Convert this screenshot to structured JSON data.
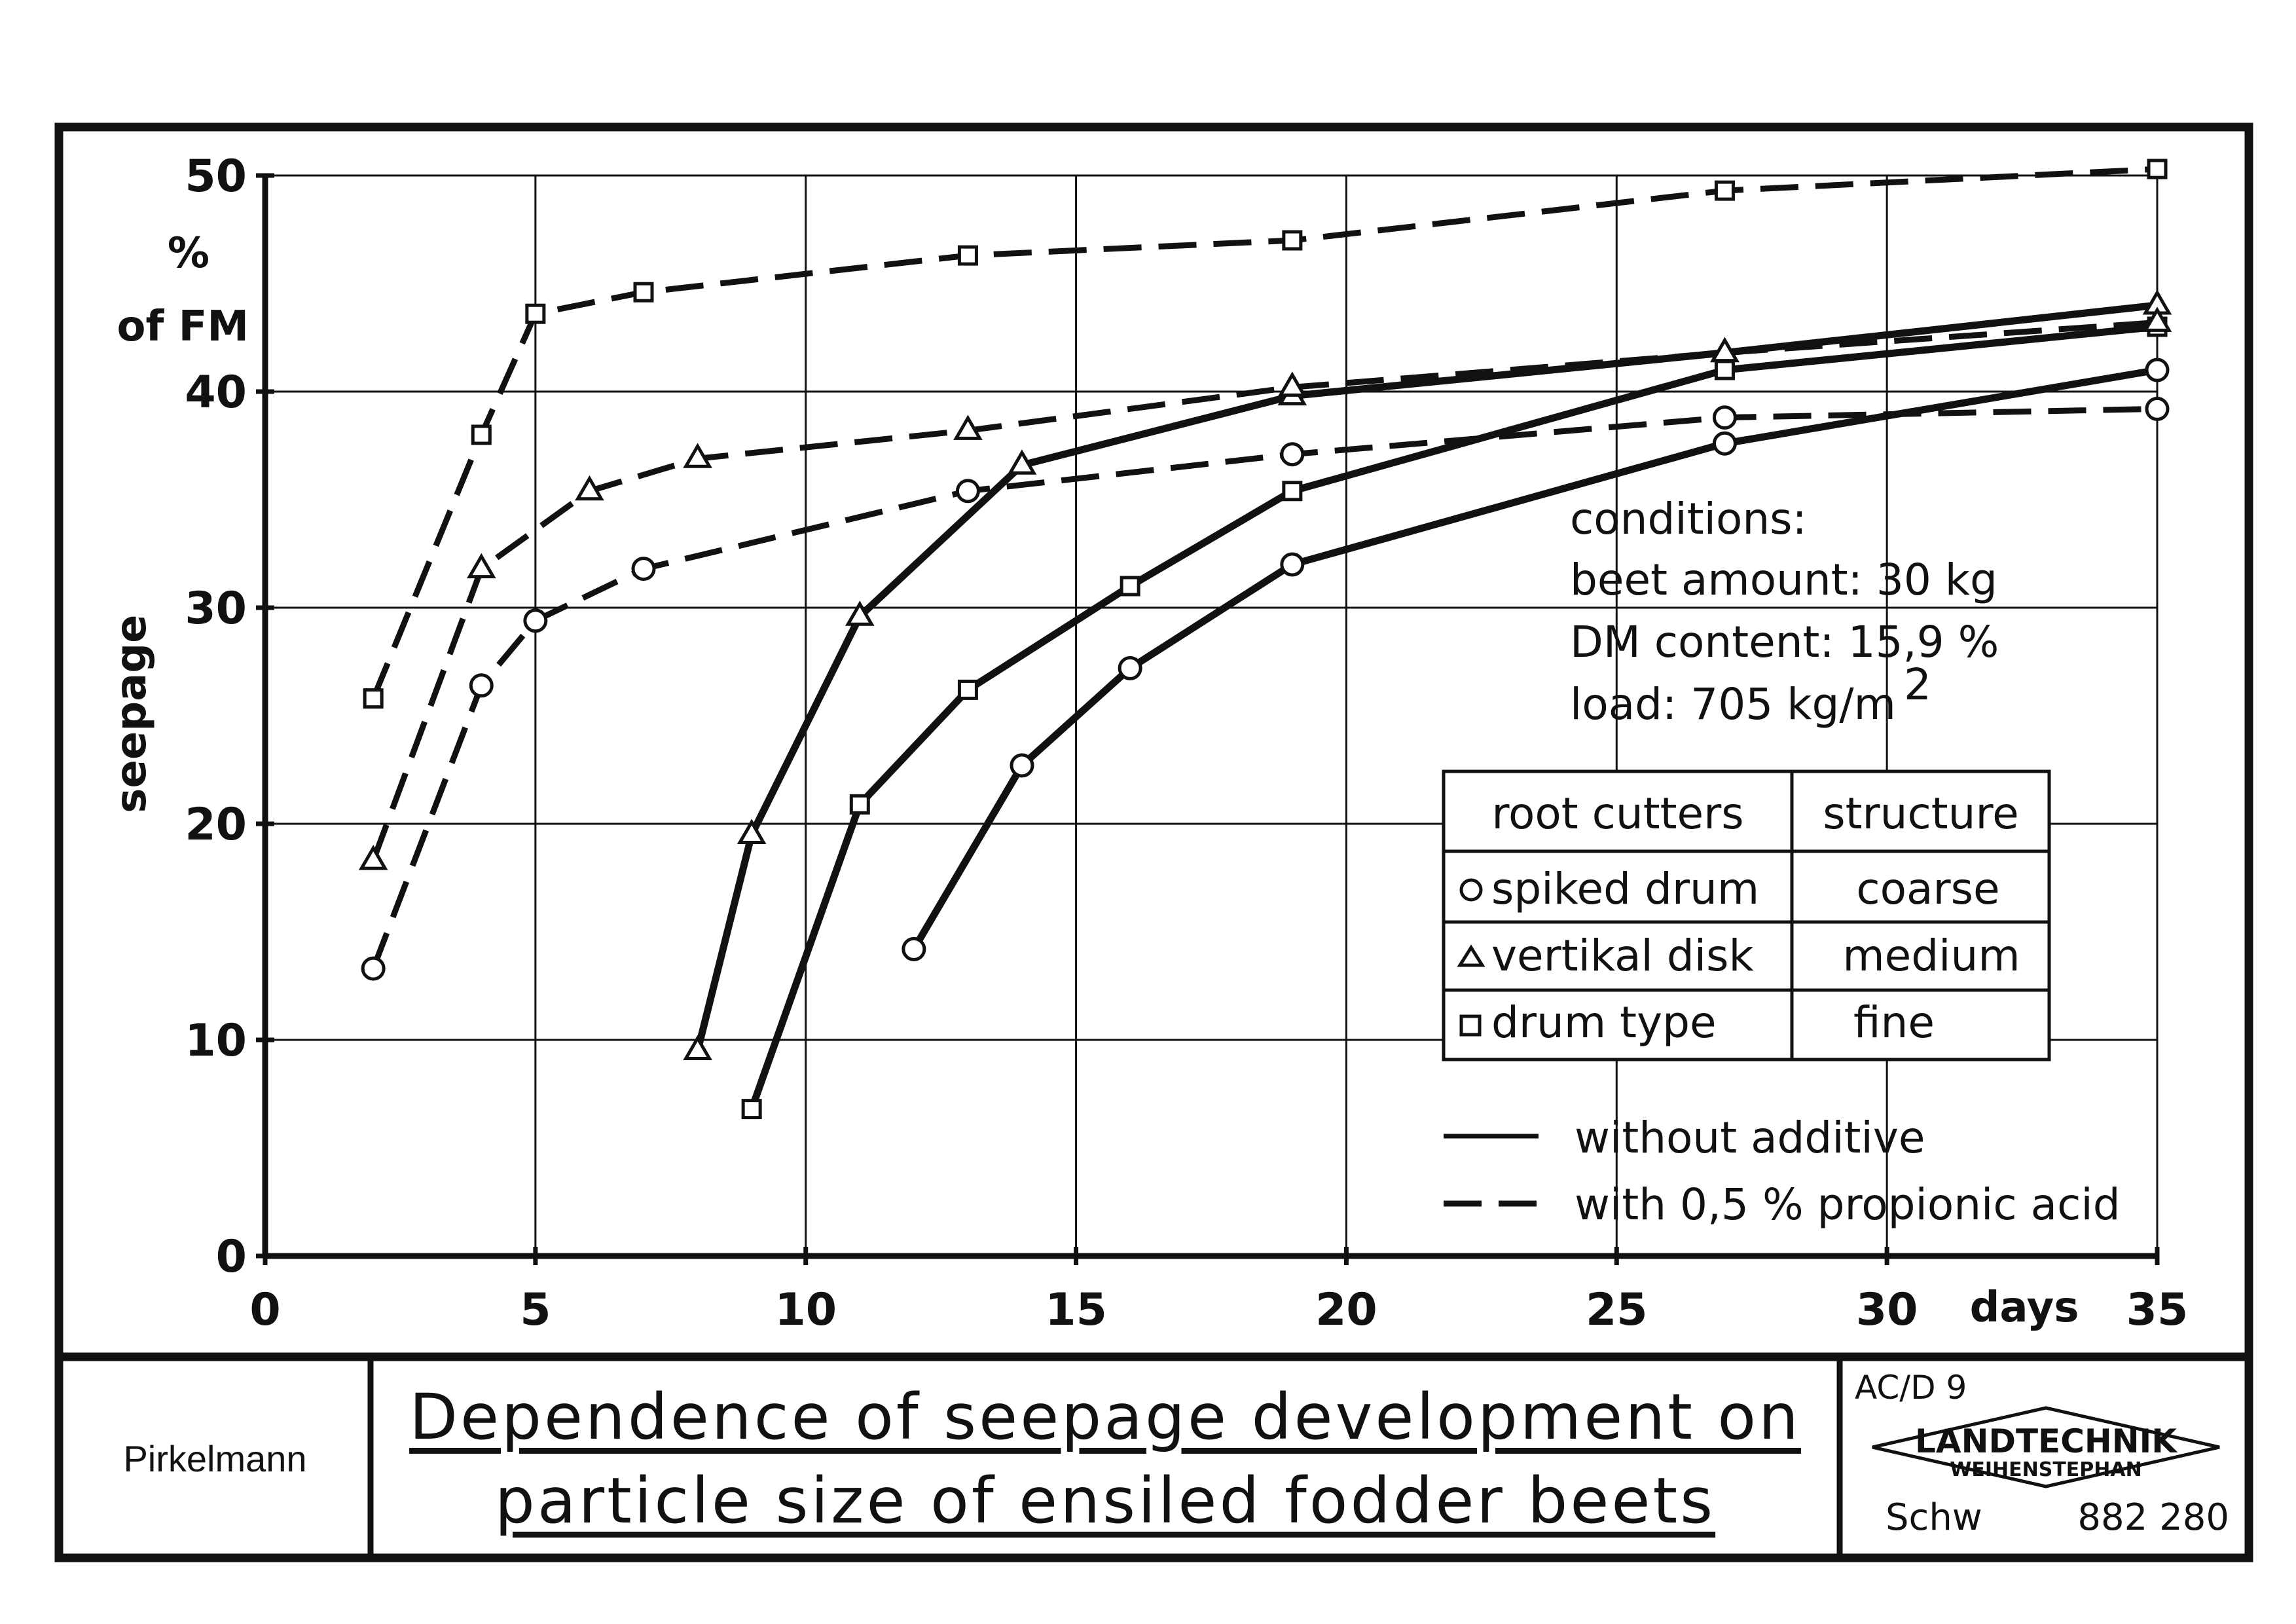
{
  "chart_data": {
    "type": "line",
    "xlabel": "days",
    "ylabel": "seepage",
    "y_unit_lines": [
      "%",
      "of FM"
    ],
    "xlim": [
      0,
      35
    ],
    "ylim": [
      0,
      50
    ],
    "x_ticks": [
      0,
      5,
      10,
      15,
      20,
      25,
      30,
      35
    ],
    "y_ticks": [
      0,
      10,
      20,
      30,
      40,
      50
    ],
    "grid": true,
    "series": [
      {
        "root_cutter": "spiked drum",
        "marker": "circle",
        "additive": "without additive",
        "x": [
          12,
          14,
          16,
          19,
          27,
          35
        ],
        "y": [
          14.2,
          22.7,
          27.2,
          32.0,
          37.6,
          41.0
        ]
      },
      {
        "root_cutter": "vertikal disk",
        "marker": "triangle",
        "additive": "without additive",
        "x": [
          8,
          9,
          11,
          14,
          19,
          27,
          35
        ],
        "y": [
          9.5,
          19.5,
          29.6,
          36.6,
          39.8,
          41.8,
          44.0
        ]
      },
      {
        "root_cutter": "drum type",
        "marker": "square",
        "additive": "without additive",
        "x": [
          9,
          11,
          13,
          16,
          19,
          27,
          35
        ],
        "y": [
          6.8,
          20.9,
          26.2,
          31.0,
          35.4,
          41.0,
          43.0
        ]
      },
      {
        "root_cutter": "spiked drum",
        "marker": "circle",
        "additive": "with 0,5 % propionic acid",
        "x": [
          2,
          4,
          5,
          7,
          13,
          19,
          27,
          35
        ],
        "y": [
          13.3,
          26.4,
          29.4,
          31.8,
          35.4,
          37.1,
          38.8,
          39.2
        ]
      },
      {
        "root_cutter": "vertikal disk",
        "marker": "triangle",
        "additive": "with 0,5 % propionic acid",
        "x": [
          2,
          4,
          6,
          8,
          13,
          19,
          27,
          35
        ],
        "y": [
          18.3,
          31.8,
          35.4,
          36.9,
          38.2,
          40.2,
          41.8,
          43.2
        ]
      },
      {
        "root_cutter": "drum type",
        "marker": "square",
        "additive": "with 0,5 % propionic acid",
        "x": [
          2,
          4,
          5,
          7,
          13,
          19,
          27,
          35
        ],
        "y": [
          25.8,
          38.0,
          43.6,
          44.6,
          46.3,
          47.0,
          49.3,
          50.3
        ]
      }
    ]
  },
  "conditions": {
    "heading": "conditions:",
    "beet_amount": "beet amount: 30 kg",
    "dm_content": "DM content: 15,9 %",
    "load": "load: 705 kg/m",
    "load_exponent": "2"
  },
  "legend_table": {
    "headers": [
      "root cutters",
      "structure"
    ],
    "rows": [
      {
        "marker": "circle",
        "cutter": "spiked drum",
        "structure": "coarse"
      },
      {
        "marker": "triangle",
        "cutter": "vertikal disk",
        "structure": "medium"
      },
      {
        "marker": "square",
        "cutter": "drum type",
        "structure": "fine"
      }
    ]
  },
  "line_legend": {
    "solid": "without additive",
    "dashed": "with 0,5 % propionic acid"
  },
  "footer": {
    "author": "Pirkelmann",
    "title_line1": "Dependence of seepage development on",
    "title_line2": "particle size of ensiled fodder beets",
    "code": "AC/D 9",
    "logo_main": "LANDTECHNIK",
    "logo_sub": "WEIHENSTEPHAN",
    "initials": "Schw",
    "number": "882 280"
  }
}
